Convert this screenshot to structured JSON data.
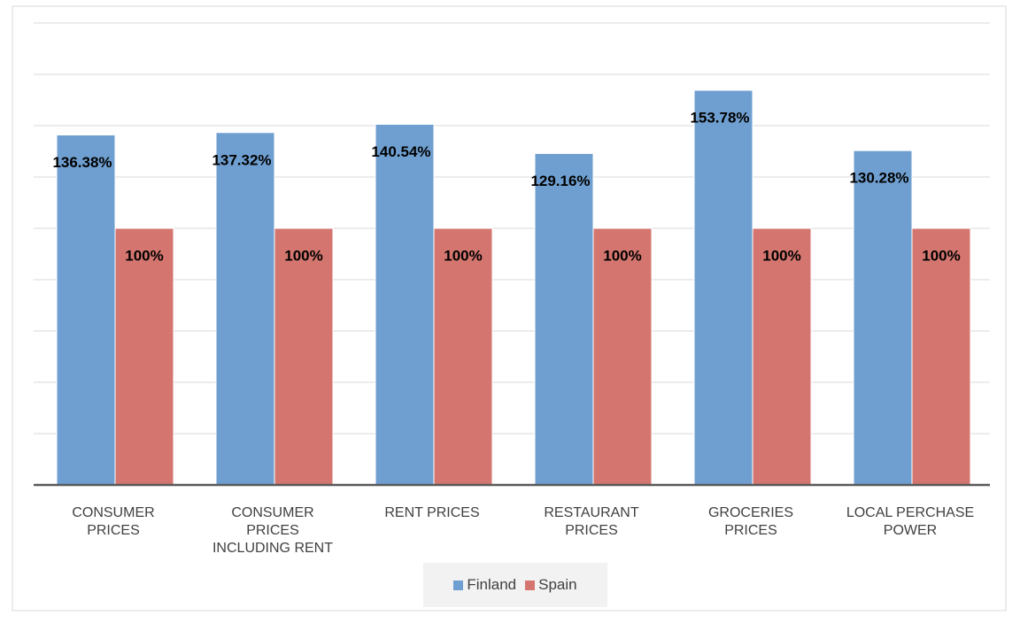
{
  "chart_data": {
    "type": "bar",
    "categories": [
      "CONSUMER PRICES",
      "CONSUMER PRICES INCLUDING RENT",
      "RENT PRICES",
      "RESTAURANT PRICES",
      "GROCERIES PRICES",
      "LOCAL PERCHASE POWER"
    ],
    "series": [
      {
        "name": "Finland",
        "color": "#6f9fd0",
        "values": [
          136.38,
          137.32,
          140.54,
          129.16,
          153.78,
          130.28
        ],
        "value_labels": [
          "136.38%",
          "137.32%",
          "140.54%",
          "129.16%",
          "153.78%",
          "130.28%"
        ]
      },
      {
        "name": "Spain",
        "color": "#d4766f",
        "values": [
          100,
          100,
          100,
          100,
          100,
          100
        ],
        "value_labels": [
          "100%",
          "100%",
          "100%",
          "100%",
          "100%",
          "100%"
        ]
      }
    ],
    "ylim": [
      0,
      180
    ],
    "yticks": [
      0,
      20,
      40,
      60,
      80,
      100,
      120,
      140,
      160,
      180
    ],
    "grid": true,
    "legend": "bottom"
  }
}
